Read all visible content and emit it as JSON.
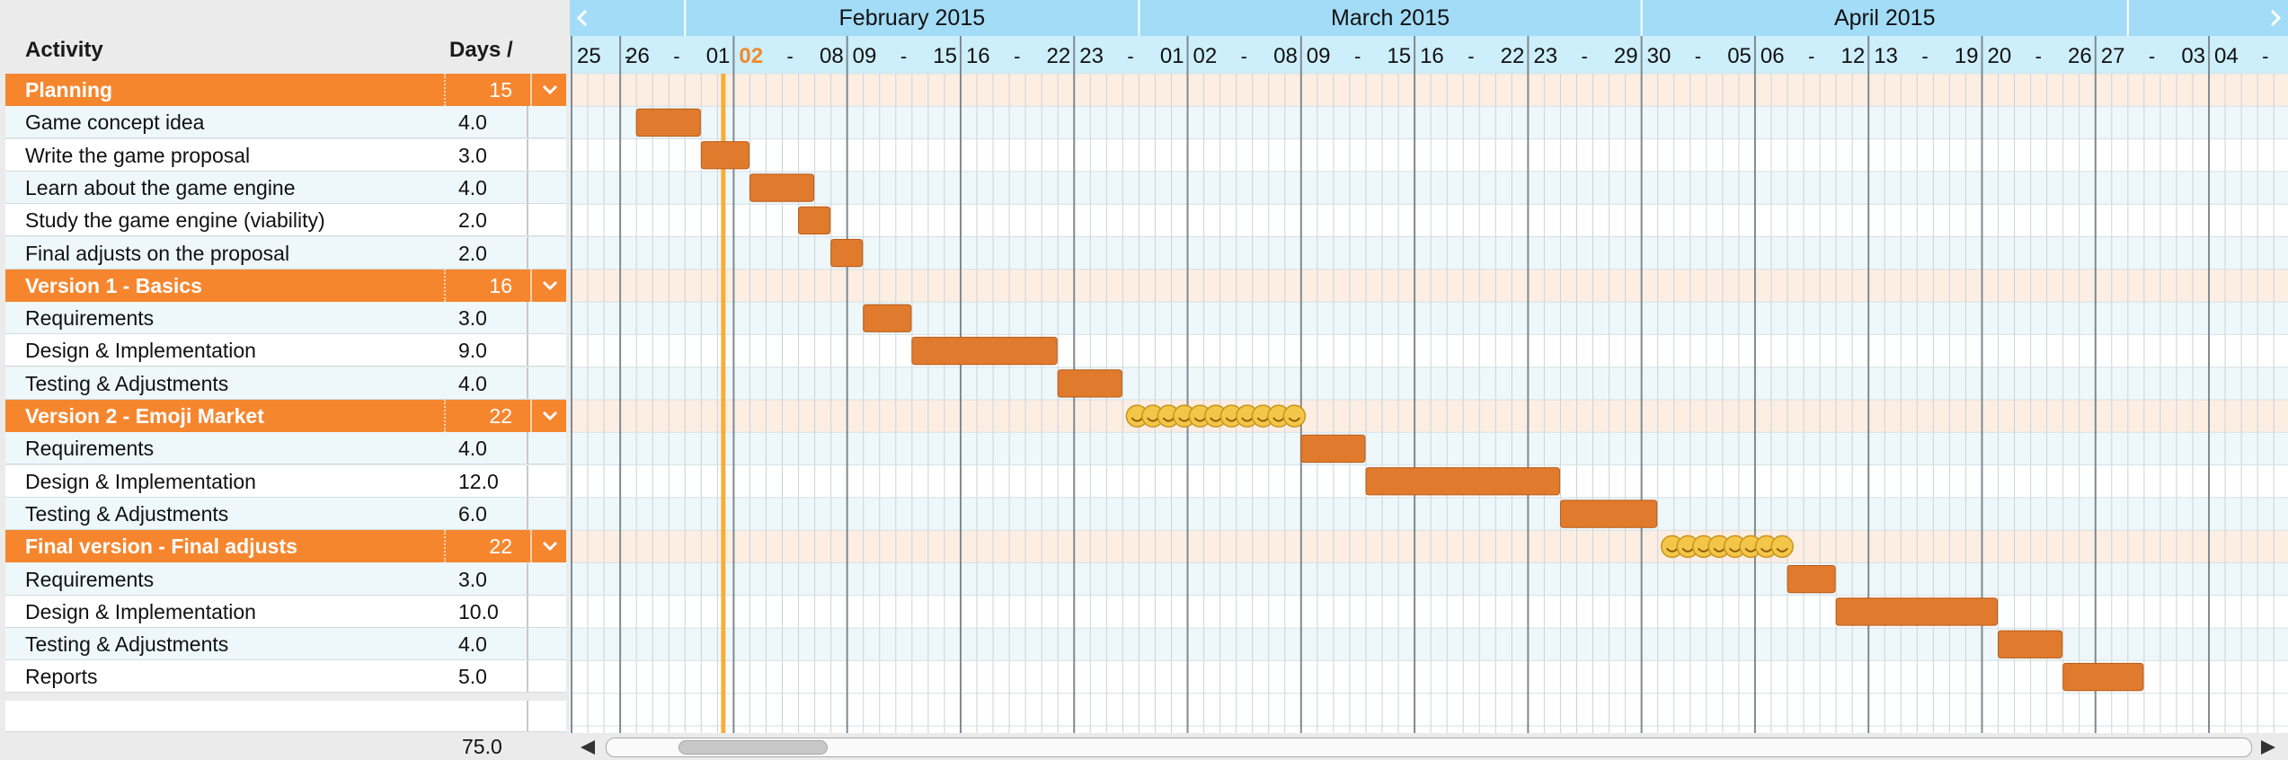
{
  "columns": {
    "activity": "Activity",
    "days": "Days /"
  },
  "groups": [
    {
      "name": "Planning",
      "days": "15",
      "tasks": [
        {
          "name": "Game concept idea",
          "days": "4.0"
        },
        {
          "name": "Write the game proposal",
          "days": "3.0"
        },
        {
          "name": "Learn about the game engine",
          "days": "4.0"
        },
        {
          "name": "Study the game engine (viability)",
          "days": "2.0"
        },
        {
          "name": "Final adjusts on the proposal",
          "days": "2.0"
        }
      ]
    },
    {
      "name": "Version 1 - Basics",
      "days": "16",
      "tasks": [
        {
          "name": "Requirements",
          "days": "3.0"
        },
        {
          "name": "Design & Implementation",
          "days": "9.0"
        },
        {
          "name": "Testing & Adjustments",
          "days": "4.0"
        }
      ]
    },
    {
      "name": "Version 2 - Emoji Market",
      "days": "22",
      "tasks": [
        {
          "name": "Requirements",
          "days": "4.0"
        },
        {
          "name": "Design & Implementation",
          "days": "12.0"
        },
        {
          "name": "Testing & Adjustments",
          "days": "6.0"
        }
      ]
    },
    {
      "name": "Final version - Final adjusts",
      "days": "22",
      "tasks": [
        {
          "name": "Requirements",
          "days": "3.0"
        },
        {
          "name": "Design & Implementation",
          "days": "10.0"
        },
        {
          "name": "Testing & Adjustments",
          "days": "4.0"
        },
        {
          "name": "Reports",
          "days": "5.0"
        }
      ]
    }
  ],
  "total": "75.0",
  "timeline": {
    "months": [
      {
        "label": "February 2015",
        "start_day": 7,
        "end_day": 35
      },
      {
        "label": "March 2015",
        "start_day": 35,
        "end_day": 66
      },
      {
        "label": "April 2015",
        "start_day": 66,
        "end_day": 96
      }
    ],
    "first_day": 0,
    "visible_days": 107,
    "today_day": 9,
    "week_labels": [
      {
        "start": "25",
        "end": ""
      },
      {
        "start": "26",
        "end": "01"
      },
      {
        "start": "02",
        "end": "08",
        "today": true
      },
      {
        "start": "09",
        "end": "15"
      },
      {
        "start": "16",
        "end": "22"
      },
      {
        "start": "23",
        "end": "01"
      },
      {
        "start": "02",
        "end": "08"
      },
      {
        "start": "09",
        "end": "15"
      },
      {
        "start": "16",
        "end": "22"
      },
      {
        "start": "23",
        "end": "29"
      },
      {
        "start": "30",
        "end": "05"
      },
      {
        "start": "06",
        "end": "12"
      },
      {
        "start": "13",
        "end": "19"
      },
      {
        "start": "20",
        "end": "26"
      },
      {
        "start": "27",
        "end": "03"
      },
      {
        "start": "04",
        "end": ""
      }
    ],
    "week_starts": [
      0,
      3,
      10,
      17,
      24,
      31,
      38,
      45,
      52,
      59,
      66,
      73,
      80,
      87,
      94,
      101
    ],
    "bars": [
      {
        "row": 1,
        "start": 4,
        "days": 4
      },
      {
        "row": 2,
        "start": 8,
        "days": 3
      },
      {
        "row": 3,
        "start": 11,
        "days": 4
      },
      {
        "row": 4,
        "start": 14,
        "days": 2
      },
      {
        "row": 5,
        "start": 16,
        "days": 2
      },
      {
        "row": 7,
        "start": 18,
        "days": 3
      },
      {
        "row": 8,
        "start": 21,
        "days": 9
      },
      {
        "row": 9,
        "start": 30,
        "days": 4
      },
      {
        "row": 11,
        "start": 45,
        "days": 4
      },
      {
        "row": 12,
        "start": 49,
        "days": 12
      },
      {
        "row": 13,
        "start": 61,
        "days": 6
      },
      {
        "row": 15,
        "start": 75,
        "days": 3
      },
      {
        "row": 16,
        "start": 78,
        "days": 10
      },
      {
        "row": 17,
        "start": 88,
        "days": 4
      },
      {
        "row": 18,
        "start": 92,
        "days": 5
      }
    ],
    "emoji_rows": [
      {
        "row": 10,
        "start": 34,
        "count": 11
      },
      {
        "row": 14,
        "start": 67,
        "count": 8
      }
    ]
  },
  "colors": {
    "accent": "#f6862e",
    "bar": "#e07a2c",
    "header_blue": "#9ad8f6",
    "today": "#f5a623"
  }
}
